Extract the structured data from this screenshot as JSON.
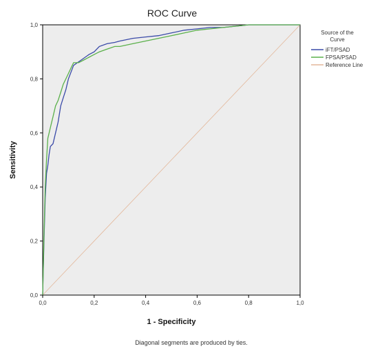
{
  "chart_data": {
    "type": "line",
    "title": "ROC Curve",
    "xlabel": "1 - Specificity",
    "ylabel": "Sensitivity",
    "xlim": [
      0,
      1
    ],
    "ylim": [
      0,
      1
    ],
    "xticks": [
      "0,0",
      "0,2",
      "0,4",
      "0,6",
      "0,8",
      "1,0"
    ],
    "yticks": [
      "0,0",
      "0,2",
      "0,4",
      "0,6",
      "0,8",
      "1,0"
    ],
    "grid": false,
    "legend_title": "Source of the Curve",
    "legend_placement": "right",
    "footnote": "Diagonal segments are produced by ties.",
    "plot_background": "#ededed",
    "series": [
      {
        "name": "iFT/PSAD",
        "color": "#3a4aa8",
        "x": [
          0,
          0.005,
          0.01,
          0.015,
          0.02,
          0.025,
          0.03,
          0.04,
          0.05,
          0.06,
          0.07,
          0.08,
          0.09,
          0.1,
          0.12,
          0.15,
          0.18,
          0.2,
          0.22,
          0.25,
          0.28,
          0.3,
          0.35,
          0.4,
          0.45,
          0.5,
          0.55,
          0.6,
          0.65,
          0.7,
          0.75,
          0.8,
          1.0
        ],
        "y": [
          0,
          0.2,
          0.36,
          0.45,
          0.48,
          0.52,
          0.55,
          0.56,
          0.6,
          0.64,
          0.7,
          0.73,
          0.76,
          0.8,
          0.85,
          0.87,
          0.89,
          0.9,
          0.92,
          0.93,
          0.935,
          0.94,
          0.95,
          0.955,
          0.96,
          0.97,
          0.98,
          0.985,
          0.99,
          0.99,
          0.995,
          1.0,
          1.0
        ]
      },
      {
        "name": "FPSA/PSAD",
        "color": "#5ab04a",
        "x": [
          0,
          0.005,
          0.01,
          0.015,
          0.02,
          0.03,
          0.04,
          0.05,
          0.06,
          0.07,
          0.08,
          0.09,
          0.1,
          0.11,
          0.12,
          0.14,
          0.16,
          0.18,
          0.2,
          0.22,
          0.25,
          0.28,
          0.3,
          0.35,
          0.4,
          0.45,
          0.5,
          0.55,
          0.6,
          0.65,
          0.7,
          0.75,
          0.8,
          1.0
        ],
        "y": [
          0,
          0.22,
          0.4,
          0.5,
          0.58,
          0.62,
          0.66,
          0.7,
          0.72,
          0.75,
          0.78,
          0.8,
          0.82,
          0.84,
          0.86,
          0.86,
          0.87,
          0.88,
          0.89,
          0.9,
          0.91,
          0.92,
          0.92,
          0.93,
          0.94,
          0.95,
          0.96,
          0.97,
          0.98,
          0.985,
          0.99,
          0.995,
          1.0,
          1.0
        ]
      },
      {
        "name": "Reference Line",
        "color": "#e3b79a",
        "x": [
          0,
          1
        ],
        "y": [
          0,
          1
        ]
      }
    ]
  }
}
